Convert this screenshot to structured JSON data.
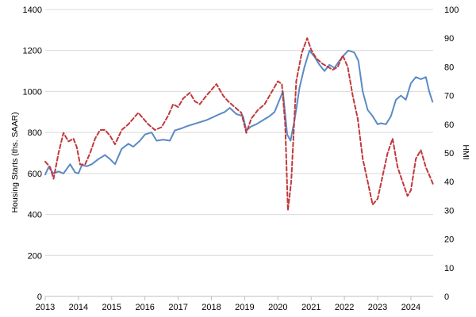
{
  "chart_data": {
    "type": "line",
    "title": "",
    "xlabel": "",
    "ylabel_left": "Housing Starts (ths. SAAR)",
    "ylabel_right": "HMI",
    "ylim_left": [
      0,
      1400
    ],
    "ylim_right": [
      0,
      100
    ],
    "xlim": [
      2013.0,
      2024.67
    ],
    "grid": "horizontal",
    "legend": "none",
    "x_ticks": [
      {
        "value": 2013,
        "label": "2013"
      },
      {
        "value": 2014,
        "label": "2014"
      },
      {
        "value": 2015,
        "label": "2015"
      },
      {
        "value": 2016,
        "label": "2016"
      },
      {
        "value": 2017,
        "label": "2017"
      },
      {
        "value": 2018,
        "label": "2018"
      },
      {
        "value": 2019,
        "label": "2019"
      },
      {
        "value": 2020,
        "label": "2020"
      },
      {
        "value": 2021,
        "label": "2021"
      },
      {
        "value": 2022,
        "label": "2022"
      },
      {
        "value": 2023,
        "label": "2023"
      },
      {
        "value": 2024,
        "label": "2024"
      }
    ],
    "y_ticks_left": [
      {
        "value": 0,
        "label": "0"
      },
      {
        "value": 200,
        "label": "200"
      },
      {
        "value": 400,
        "label": "400"
      },
      {
        "value": 600,
        "label": "600"
      },
      {
        "value": 800,
        "label": "800"
      },
      {
        "value": 1000,
        "label": "1000"
      },
      {
        "value": 1200,
        "label": "1200"
      },
      {
        "value": 1400,
        "label": "1400"
      }
    ],
    "y_ticks_right": [
      {
        "value": 0,
        "label": "0"
      },
      {
        "value": 10,
        "label": "10"
      },
      {
        "value": 20,
        "label": "20"
      },
      {
        "value": 30,
        "label": "30"
      },
      {
        "value": 40,
        "label": "40"
      },
      {
        "value": 50,
        "label": "50"
      },
      {
        "value": 60,
        "label": "60"
      },
      {
        "value": 70,
        "label": "70"
      },
      {
        "value": 80,
        "label": "80"
      },
      {
        "value": 90,
        "label": "90"
      },
      {
        "value": 100,
        "label": "100"
      }
    ],
    "series": [
      {
        "axis": "left",
        "color": "#5b8ac4",
        "style": "solid",
        "points": [
          [
            2013.0,
            595
          ],
          [
            2013.1,
            630
          ],
          [
            2013.25,
            600
          ],
          [
            2013.4,
            610
          ],
          [
            2013.55,
            600
          ],
          [
            2013.75,
            645
          ],
          [
            2013.9,
            605
          ],
          [
            2014.0,
            600
          ],
          [
            2014.1,
            640
          ],
          [
            2014.25,
            635
          ],
          [
            2014.4,
            645
          ],
          [
            2014.6,
            670
          ],
          [
            2014.8,
            690
          ],
          [
            2014.95,
            670
          ],
          [
            2015.1,
            645
          ],
          [
            2015.3,
            720
          ],
          [
            2015.5,
            745
          ],
          [
            2015.65,
            730
          ],
          [
            2015.85,
            760
          ],
          [
            2016.0,
            790
          ],
          [
            2016.2,
            800
          ],
          [
            2016.35,
            760
          ],
          [
            2016.55,
            765
          ],
          [
            2016.75,
            760
          ],
          [
            2016.9,
            810
          ],
          [
            2017.1,
            820
          ],
          [
            2017.25,
            830
          ],
          [
            2017.45,
            840
          ],
          [
            2017.65,
            850
          ],
          [
            2017.85,
            860
          ],
          [
            2018.05,
            875
          ],
          [
            2018.25,
            890
          ],
          [
            2018.4,
            900
          ],
          [
            2018.55,
            920
          ],
          [
            2018.75,
            890
          ],
          [
            2018.95,
            880
          ],
          [
            2019.05,
            810
          ],
          [
            2019.2,
            830
          ],
          [
            2019.35,
            840
          ],
          [
            2019.55,
            860
          ],
          [
            2019.75,
            880
          ],
          [
            2019.9,
            900
          ],
          [
            2020.0,
            940
          ],
          [
            2020.15,
            1000
          ],
          [
            2020.28,
            790
          ],
          [
            2020.38,
            760
          ],
          [
            2020.5,
            860
          ],
          [
            2020.65,
            1020
          ],
          [
            2020.8,
            1120
          ],
          [
            2020.95,
            1200
          ],
          [
            2021.1,
            1170
          ],
          [
            2021.25,
            1130
          ],
          [
            2021.4,
            1100
          ],
          [
            2021.55,
            1130
          ],
          [
            2021.7,
            1115
          ],
          [
            2021.85,
            1150
          ],
          [
            2022.0,
            1180
          ],
          [
            2022.12,
            1200
          ],
          [
            2022.3,
            1190
          ],
          [
            2022.42,
            1150
          ],
          [
            2022.55,
            1000
          ],
          [
            2022.7,
            910
          ],
          [
            2022.85,
            880
          ],
          [
            2023.0,
            840
          ],
          [
            2023.1,
            845
          ],
          [
            2023.25,
            840
          ],
          [
            2023.4,
            880
          ],
          [
            2023.55,
            960
          ],
          [
            2023.7,
            980
          ],
          [
            2023.85,
            960
          ],
          [
            2024.0,
            1040
          ],
          [
            2024.15,
            1070
          ],
          [
            2024.3,
            1060
          ],
          [
            2024.45,
            1070
          ],
          [
            2024.55,
            1000
          ],
          [
            2024.65,
            950
          ]
        ]
      },
      {
        "axis": "right",
        "color": "#c0393b",
        "style": "dashed",
        "points": [
          [
            2013.0,
            47
          ],
          [
            2013.15,
            45
          ],
          [
            2013.25,
            41
          ],
          [
            2013.4,
            50
          ],
          [
            2013.55,
            57
          ],
          [
            2013.7,
            54
          ],
          [
            2013.85,
            55
          ],
          [
            2013.95,
            52
          ],
          [
            2014.05,
            46
          ],
          [
            2014.2,
            46
          ],
          [
            2014.35,
            50
          ],
          [
            2014.5,
            55
          ],
          [
            2014.65,
            58
          ],
          [
            2014.8,
            58
          ],
          [
            2014.95,
            56
          ],
          [
            2015.1,
            53
          ],
          [
            2015.3,
            58
          ],
          [
            2015.5,
            60
          ],
          [
            2015.65,
            62
          ],
          [
            2015.8,
            64
          ],
          [
            2015.95,
            62
          ],
          [
            2016.1,
            60
          ],
          [
            2016.3,
            58
          ],
          [
            2016.5,
            59
          ],
          [
            2016.7,
            63
          ],
          [
            2016.85,
            67
          ],
          [
            2017.0,
            66
          ],
          [
            2017.15,
            69
          ],
          [
            2017.35,
            71
          ],
          [
            2017.5,
            68
          ],
          [
            2017.65,
            67
          ],
          [
            2017.85,
            70
          ],
          [
            2018.0,
            72
          ],
          [
            2018.15,
            74
          ],
          [
            2018.35,
            70
          ],
          [
            2018.5,
            68
          ],
          [
            2018.7,
            66
          ],
          [
            2018.9,
            64
          ],
          [
            2019.05,
            57
          ],
          [
            2019.2,
            62
          ],
          [
            2019.4,
            65
          ],
          [
            2019.6,
            67
          ],
          [
            2019.8,
            71
          ],
          [
            2020.0,
            75
          ],
          [
            2020.12,
            74
          ],
          [
            2020.22,
            60
          ],
          [
            2020.3,
            30
          ],
          [
            2020.4,
            40
          ],
          [
            2020.55,
            75
          ],
          [
            2020.72,
            85
          ],
          [
            2020.88,
            90
          ],
          [
            2021.0,
            86
          ],
          [
            2021.15,
            83
          ],
          [
            2021.35,
            81
          ],
          [
            2021.5,
            80
          ],
          [
            2021.65,
            79
          ],
          [
            2021.8,
            80
          ],
          [
            2021.95,
            84
          ],
          [
            2022.1,
            80
          ],
          [
            2022.25,
            70
          ],
          [
            2022.4,
            62
          ],
          [
            2022.55,
            48
          ],
          [
            2022.7,
            40
          ],
          [
            2022.85,
            32
          ],
          [
            2023.0,
            34
          ],
          [
            2023.15,
            42
          ],
          [
            2023.3,
            50
          ],
          [
            2023.45,
            55
          ],
          [
            2023.6,
            45
          ],
          [
            2023.75,
            40
          ],
          [
            2023.9,
            35
          ],
          [
            2024.0,
            37
          ],
          [
            2024.15,
            48
          ],
          [
            2024.3,
            51
          ],
          [
            2024.45,
            45
          ],
          [
            2024.6,
            41
          ],
          [
            2024.67,
            39
          ]
        ]
      }
    ]
  }
}
